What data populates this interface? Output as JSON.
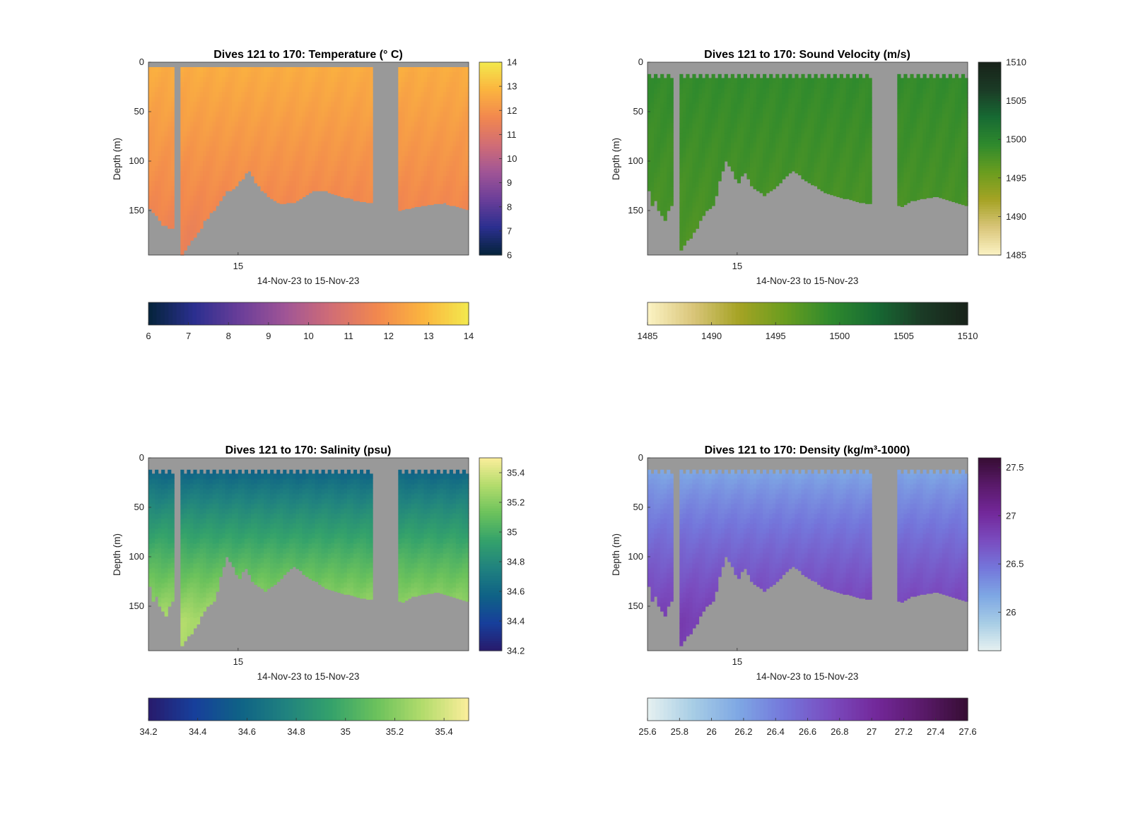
{
  "figure": {
    "background": "#ffffff",
    "panel_background": "#999999"
  },
  "chart_data": [
    {
      "type": "heatmap",
      "title": "Dives 121 to 170: Temperature (° C)",
      "xlabel": "14-Nov-23 to 15-Nov-23",
      "ylabel": "Depth (m)",
      "ylim": [
        0,
        195
      ],
      "yticks": [
        0,
        50,
        100,
        150
      ],
      "xticks": [
        {
          "value": 28,
          "label": "15"
        }
      ],
      "colormap": "thermal",
      "colorbar": {
        "min": 6,
        "max": 14,
        "ticks": [
          6,
          7,
          8,
          9,
          10,
          11,
          12,
          13,
          14
        ]
      },
      "colorbar_horizontal": {
        "min": 6,
        "max": 14,
        "ticks": [
          6,
          7,
          8,
          9,
          10,
          11,
          12,
          13,
          14
        ]
      },
      "profiles": {
        "count": 100,
        "surface_gap_m": 5,
        "gaps": [
          [
            8,
            9
          ],
          [
            70,
            77
          ]
        ],
        "max_depth_m": [
          148,
          152,
          155,
          160,
          165,
          165,
          168,
          168,
          0,
          0,
          195,
          190,
          185,
          180,
          177,
          172,
          168,
          160,
          158,
          152,
          150,
          145,
          140,
          135,
          130,
          130,
          128,
          125,
          120,
          118,
          112,
          110,
          115,
          122,
          125,
          130,
          132,
          136,
          138,
          140,
          142,
          143,
          143,
          142,
          142,
          142,
          140,
          138,
          136,
          134,
          132,
          130,
          130,
          130,
          130,
          130,
          132,
          133,
          134,
          135,
          136,
          137,
          137,
          138,
          140,
          140,
          141,
          141,
          142,
          142,
          0,
          0,
          0,
          0,
          0,
          0,
          0,
          0,
          150,
          149,
          148,
          148,
          147,
          146,
          146,
          145,
          145,
          144,
          144,
          143,
          143,
          143,
          142,
          144,
          145,
          145,
          146,
          147,
          148,
          149
        ],
        "deep_value": 11.5,
        "shallow_value": 12.7
      }
    },
    {
      "type": "heatmap",
      "title": "Dives 121 to 170: Sound Velocity (m/s)",
      "xlabel": "14-Nov-23 to 15-Nov-23",
      "ylabel": "Depth (m)",
      "ylim": [
        0,
        195
      ],
      "yticks": [
        0,
        50,
        100,
        150
      ],
      "xticks": [
        {
          "value": 28,
          "label": "15"
        }
      ],
      "colormap": "speed",
      "colorbar": {
        "min": 1485,
        "max": 1510,
        "ticks": [
          1485,
          1490,
          1495,
          1500,
          1505,
          1510
        ]
      },
      "colorbar_horizontal": {
        "min": 1485,
        "max": 1510,
        "ticks": [
          1485,
          1490,
          1495,
          1500,
          1505,
          1510
        ]
      },
      "profiles": {
        "count": 100,
        "surface_gap_m": 12,
        "gaps": [
          [
            8,
            9
          ],
          [
            70,
            77
          ]
        ],
        "max_depth_m": [
          130,
          145,
          140,
          150,
          155,
          160,
          150,
          145,
          0,
          0,
          190,
          185,
          180,
          178,
          172,
          168,
          160,
          155,
          150,
          148,
          145,
          135,
          120,
          110,
          100,
          105,
          110,
          118,
          122,
          115,
          112,
          118,
          125,
          128,
          130,
          132,
          135,
          132,
          130,
          128,
          125,
          122,
          118,
          115,
          112,
          110,
          112,
          114,
          118,
          120,
          122,
          124,
          125,
          128,
          130,
          132,
          133,
          134,
          135,
          136,
          137,
          138,
          138,
          139,
          140,
          141,
          142,
          142,
          143,
          143,
          0,
          0,
          0,
          0,
          0,
          0,
          0,
          0,
          145,
          146,
          144,
          142,
          140,
          140,
          139,
          138,
          138,
          137,
          137,
          136,
          136,
          137,
          138,
          139,
          140,
          141,
          142,
          143,
          144,
          145
        ],
        "deep_value": 1497.5,
        "shallow_value": 1499.2
      }
    },
    {
      "type": "heatmap",
      "title": "Dives 121 to 170: Salinity (psu)",
      "xlabel": "14-Nov-23 to 15-Nov-23",
      "ylabel": "Depth (m)",
      "ylim": [
        0,
        195
      ],
      "yticks": [
        0,
        50,
        100,
        150
      ],
      "xticks": [
        {
          "value": 28,
          "label": "15"
        }
      ],
      "colormap": "haline",
      "colorbar": {
        "min": 34.2,
        "max": 35.5,
        "ticks": [
          34.2,
          34.4,
          34.6,
          34.8,
          35,
          35.2,
          35.4
        ]
      },
      "colorbar_horizontal": {
        "min": 34.2,
        "max": 35.5,
        "ticks": [
          34.2,
          34.4,
          34.6,
          34.8,
          35,
          35.2,
          35.4
        ]
      },
      "profiles": {
        "count": 100,
        "surface_gap_m": 12,
        "gaps": [
          [
            8,
            9
          ],
          [
            70,
            77
          ]
        ],
        "max_depth_m": [
          130,
          145,
          140,
          150,
          155,
          160,
          150,
          145,
          0,
          0,
          190,
          185,
          180,
          178,
          172,
          168,
          160,
          155,
          150,
          148,
          145,
          135,
          120,
          110,
          100,
          105,
          110,
          118,
          122,
          115,
          112,
          118,
          125,
          128,
          130,
          132,
          135,
          132,
          130,
          128,
          125,
          122,
          118,
          115,
          112,
          110,
          112,
          114,
          118,
          120,
          122,
          124,
          125,
          128,
          130,
          132,
          133,
          134,
          135,
          136,
          137,
          138,
          138,
          139,
          140,
          141,
          142,
          142,
          143,
          143,
          0,
          0,
          0,
          0,
          0,
          0,
          0,
          0,
          145,
          146,
          144,
          142,
          140,
          140,
          139,
          138,
          138,
          137,
          137,
          136,
          136,
          137,
          138,
          139,
          140,
          141,
          142,
          143,
          144,
          145
        ],
        "surface_value": 34.45,
        "deep_value": 35.3
      }
    },
    {
      "type": "heatmap",
      "title": "Dives 121 to 170: Density (kg/m³-1000)",
      "xlabel": "14-Nov-23 to 15-Nov-23",
      "ylabel": "Depth (m)",
      "ylim": [
        0,
        195
      ],
      "yticks": [
        0,
        50,
        100,
        150
      ],
      "xticks": [
        {
          "value": 28,
          "label": "15"
        }
      ],
      "colormap": "dense",
      "colorbar": {
        "min": 25.6,
        "max": 27.6,
        "ticks": [
          26,
          26.5,
          27,
          27.5
        ]
      },
      "colorbar_horizontal": {
        "min": 25.6,
        "max": 27.6,
        "ticks": [
          25.6,
          25.8,
          26,
          26.2,
          26.4,
          26.6,
          26.8,
          27,
          27.2,
          27.4,
          27.6
        ]
      },
      "profiles": {
        "count": 100,
        "surface_gap_m": 12,
        "gaps": [
          [
            8,
            9
          ],
          [
            70,
            77
          ]
        ],
        "max_depth_m": [
          130,
          145,
          140,
          150,
          155,
          160,
          150,
          145,
          0,
          0,
          190,
          185,
          180,
          178,
          172,
          168,
          160,
          155,
          150,
          148,
          145,
          135,
          120,
          110,
          100,
          105,
          110,
          118,
          122,
          115,
          112,
          118,
          125,
          128,
          130,
          132,
          135,
          132,
          130,
          128,
          125,
          122,
          118,
          115,
          112,
          110,
          112,
          114,
          118,
          120,
          122,
          124,
          125,
          128,
          130,
          132,
          133,
          134,
          135,
          136,
          137,
          138,
          138,
          139,
          140,
          141,
          142,
          142,
          143,
          143,
          0,
          0,
          0,
          0,
          0,
          0,
          0,
          0,
          145,
          146,
          144,
          142,
          140,
          140,
          139,
          138,
          138,
          137,
          137,
          136,
          136,
          137,
          138,
          139,
          140,
          141,
          142,
          143,
          144,
          145
        ],
        "surface_value": 26.05,
        "deep_value": 26.85
      }
    }
  ]
}
